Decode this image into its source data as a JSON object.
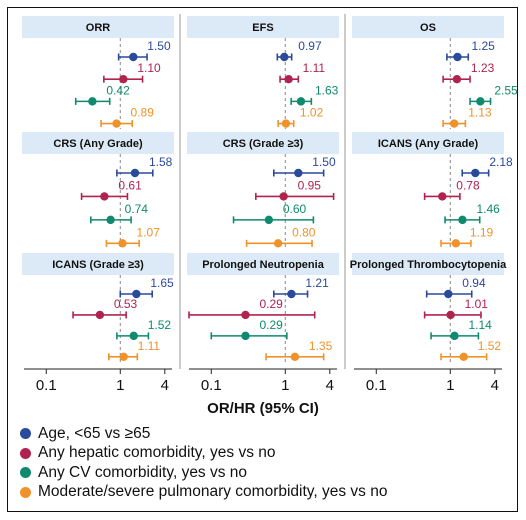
{
  "chart_data": {
    "type": "forest",
    "xlabel": "OR/HR (95% CI)",
    "x_scale": "log",
    "xlim": [
      0.05,
      5
    ],
    "xticks": [
      0.1,
      1,
      4
    ],
    "xtick_labels": [
      "0.1",
      "1",
      "4"
    ],
    "reference_line": 1,
    "grid": false,
    "legend_position": "bottom",
    "series": [
      {
        "name": "Age, <65 vs ≥65",
        "color": "#2a4a9c"
      },
      {
        "name": "Any hepatic comorbidity, yes vs no",
        "color": "#b0234f"
      },
      {
        "name": "Any CV comorbidity, yes vs no",
        "color": "#0f8a6e"
      },
      {
        "name": "Moderate/severe pulmonary comorbidity, yes vs no",
        "color": "#f0922a"
      }
    ],
    "panels": [
      {
        "title": "ORR",
        "estimates": [
          {
            "value": 1.5,
            "label": "1.50",
            "ci": [
              0.95,
              2.3
            ]
          },
          {
            "value": 1.1,
            "label": "1.10",
            "ci": [
              0.6,
              2.0
            ]
          },
          {
            "value": 0.42,
            "label": "0.42",
            "ci": [
              0.25,
              0.72
            ]
          },
          {
            "value": 0.89,
            "label": "0.89",
            "ci": [
              0.55,
              1.45
            ]
          }
        ]
      },
      {
        "title": "EFS",
        "estimates": [
          {
            "value": 0.97,
            "label": "0.97",
            "ci": [
              0.78,
              1.22
            ]
          },
          {
            "value": 1.11,
            "label": "1.11",
            "ci": [
              0.85,
              1.5
            ]
          },
          {
            "value": 1.63,
            "label": "1.63",
            "ci": [
              1.2,
              2.25
            ]
          },
          {
            "value": 1.02,
            "label": "1.02",
            "ci": [
              0.8,
              1.3
            ]
          }
        ]
      },
      {
        "title": "OS",
        "estimates": [
          {
            "value": 1.25,
            "label": "1.25",
            "ci": [
              0.9,
              1.75
            ]
          },
          {
            "value": 1.23,
            "label": "1.23",
            "ci": [
              0.8,
              1.85
            ]
          },
          {
            "value": 2.55,
            "label": "2.55",
            "ci": [
              1.85,
              3.5
            ]
          },
          {
            "value": 1.13,
            "label": "1.13",
            "ci": [
              0.8,
              1.6
            ]
          }
        ]
      },
      {
        "title": "CRS (Any Grade)",
        "estimates": [
          {
            "value": 1.58,
            "label": "1.58",
            "ci": [
              0.9,
              2.75
            ]
          },
          {
            "value": 0.61,
            "label": "0.61",
            "ci": [
              0.3,
              1.25
            ]
          },
          {
            "value": 0.74,
            "label": "0.74",
            "ci": [
              0.4,
              1.4
            ]
          },
          {
            "value": 1.07,
            "label": "1.07",
            "ci": [
              0.65,
              1.8
            ]
          }
        ]
      },
      {
        "title": "CRS (Grade ≥3)",
        "estimates": [
          {
            "value": 1.5,
            "label": "1.50",
            "ci": [
              0.7,
              3.3
            ]
          },
          {
            "value": 0.95,
            "label": "0.95",
            "ci": [
              0.4,
              4.5
            ]
          },
          {
            "value": 0.6,
            "label": "0.60",
            "ci": [
              0.2,
              2.4
            ]
          },
          {
            "value": 0.8,
            "label": "0.80",
            "ci": [
              0.3,
              2.3
            ]
          }
        ]
      },
      {
        "title": "ICANS (Any Grade)",
        "estimates": [
          {
            "value": 2.18,
            "label": "2.18",
            "ci": [
              1.45,
              3.3
            ]
          },
          {
            "value": 0.78,
            "label": "0.78",
            "ci": [
              0.45,
              1.35
            ]
          },
          {
            "value": 1.46,
            "label": "1.46",
            "ci": [
              0.85,
              2.5
            ]
          },
          {
            "value": 1.19,
            "label": "1.19",
            "ci": [
              0.75,
              1.9
            ]
          }
        ]
      },
      {
        "title": "ICANS (Grade ≥3)",
        "estimates": [
          {
            "value": 1.65,
            "label": "1.65",
            "ci": [
              1.0,
              2.7
            ]
          },
          {
            "value": 0.53,
            "label": "0.53",
            "ci": [
              0.23,
              1.2
            ]
          },
          {
            "value": 1.52,
            "label": "1.52",
            "ci": [
              0.9,
              2.4
            ]
          },
          {
            "value": 1.11,
            "label": "1.11",
            "ci": [
              0.7,
              1.7
            ]
          }
        ]
      },
      {
        "title": "Prolonged Neutropenia",
        "estimates": [
          {
            "value": 1.21,
            "label": "1.21",
            "ci": [
              0.7,
              2.0
            ]
          },
          {
            "value": 0.29,
            "label": "0.29",
            "ci": [
              0.05,
              2.5
            ]
          },
          {
            "value": 0.29,
            "label": "0.29",
            "ci": [
              0.1,
              1.05
            ]
          },
          {
            "value": 1.35,
            "label": "1.35",
            "ci": [
              0.55,
              3.3
            ]
          }
        ]
      },
      {
        "title": "Prolonged Thrombocytopenia",
        "estimates": [
          {
            "value": 0.94,
            "label": "0.94",
            "ci": [
              0.48,
              1.95
            ]
          },
          {
            "value": 1.01,
            "label": "1.01",
            "ci": [
              0.45,
              2.6
            ]
          },
          {
            "value": 1.14,
            "label": "1.14",
            "ci": [
              0.55,
              2.4
            ]
          },
          {
            "value": 1.52,
            "label": "1.52",
            "ci": [
              0.75,
              3.1
            ]
          }
        ]
      }
    ]
  }
}
